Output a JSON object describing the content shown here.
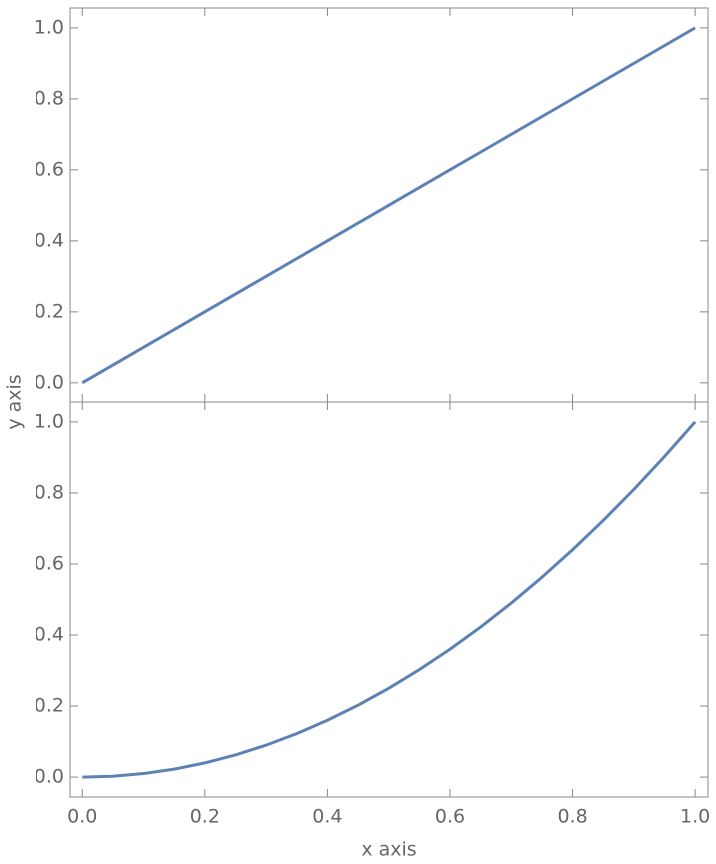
{
  "chart_data": [
    {
      "type": "line",
      "y_label": "y axis",
      "x": [
        0,
        0.05,
        0.1,
        0.15,
        0.2,
        0.25,
        0.3,
        0.35,
        0.4,
        0.45,
        0.5,
        0.55,
        0.6,
        0.65,
        0.7,
        0.75,
        0.8,
        0.85,
        0.9,
        0.95,
        1
      ],
      "series": [
        {
          "color": "#5e81b5",
          "values": [
            0,
            0.05,
            0.1,
            0.15,
            0.2,
            0.25,
            0.3,
            0.35,
            0.4,
            0.45,
            0.5,
            0.55,
            0.6,
            0.65,
            0.7,
            0.75,
            0.8,
            0.85,
            0.9,
            0.95,
            1
          ]
        }
      ],
      "xlim": [
        -0.02,
        1.021
      ],
      "xticks": [
        0,
        0.2,
        0.4,
        0.6,
        0.8,
        1
      ],
      "ylim": [
        -0.054,
        1.056
      ],
      "yticks": [
        {
          "value": 0,
          "label": "0.0"
        },
        0.2,
        0.4,
        0.6,
        0.8,
        {
          "value": 1,
          "label": "1.0"
        }
      ]
    },
    {
      "type": "line",
      "x_label": "x axis",
      "x": [
        0,
        0.05,
        0.1,
        0.15,
        0.2,
        0.25,
        0.3,
        0.35,
        0.4,
        0.45,
        0.5,
        0.55,
        0.6,
        0.65,
        0.7,
        0.75,
        0.8,
        0.85,
        0.9,
        0.95,
        1
      ],
      "series": [
        {
          "color": "#5e81b5",
          "values": [
            0,
            0.0025,
            0.01,
            0.0225,
            0.04,
            0.0625,
            0.09,
            0.1225,
            0.16,
            0.2025,
            0.25,
            0.3025,
            0.36,
            0.4225,
            0.49,
            0.5625,
            0.64,
            0.7225,
            0.81,
            0.9025,
            1
          ]
        }
      ],
      "xlim": [
        -0.02,
        1.021
      ],
      "xticks": [
        {
          "value": 0,
          "label": "0.0"
        },
        0.2,
        0.4,
        0.6,
        0.8,
        {
          "value": 1,
          "label": "1.0"
        }
      ],
      "ylim": [
        -0.056,
        1.056
      ],
      "yticks": [
        {
          "value": 0,
          "label": "0.0"
        },
        0.2,
        0.4,
        0.6,
        0.8,
        {
          "value": 1,
          "label": "1.0"
        }
      ]
    }
  ]
}
